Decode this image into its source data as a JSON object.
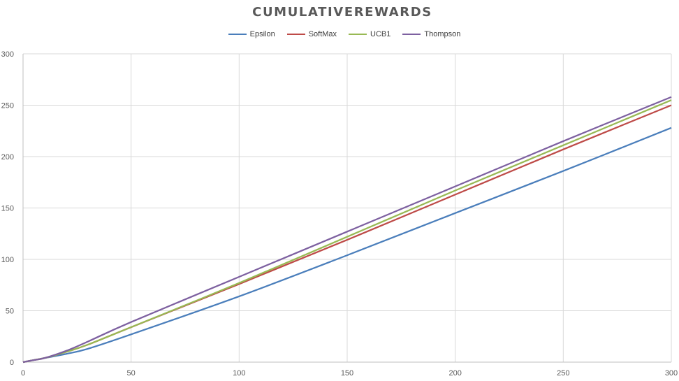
{
  "chart_data": {
    "type": "line",
    "title": "CUMULATIVEREWARDS",
    "xlabel": "",
    "ylabel": "",
    "xlim": [
      0,
      300
    ],
    "ylim": [
      0,
      300
    ],
    "x_ticks": [
      0,
      50,
      100,
      150,
      200,
      250,
      300
    ],
    "y_ticks": [
      0,
      50,
      100,
      150,
      200,
      250,
      300
    ],
    "grid": true,
    "legend_position": "top",
    "x": [
      0,
      5,
      10,
      20,
      30,
      50,
      100,
      150,
      200,
      250,
      300
    ],
    "series": [
      {
        "name": "Epsilon",
        "color": "#4a7ebb",
        "values": [
          0,
          2,
          4,
          8,
          13,
          27,
          64,
          104,
          145,
          186,
          228
        ]
      },
      {
        "name": "SoftMax",
        "color": "#be4b48",
        "values": [
          0,
          2,
          4,
          10,
          17,
          34,
          76,
          119,
          163,
          207,
          250
        ]
      },
      {
        "name": "UCB1",
        "color": "#98b954",
        "values": [
          0,
          2,
          4,
          10,
          17,
          34,
          77,
          122,
          167,
          211,
          255
        ]
      },
      {
        "name": "Thompson",
        "color": "#7d60a0",
        "values": [
          0,
          2,
          4,
          11,
          20,
          39,
          83,
          127,
          171,
          215,
          258
        ]
      }
    ]
  }
}
